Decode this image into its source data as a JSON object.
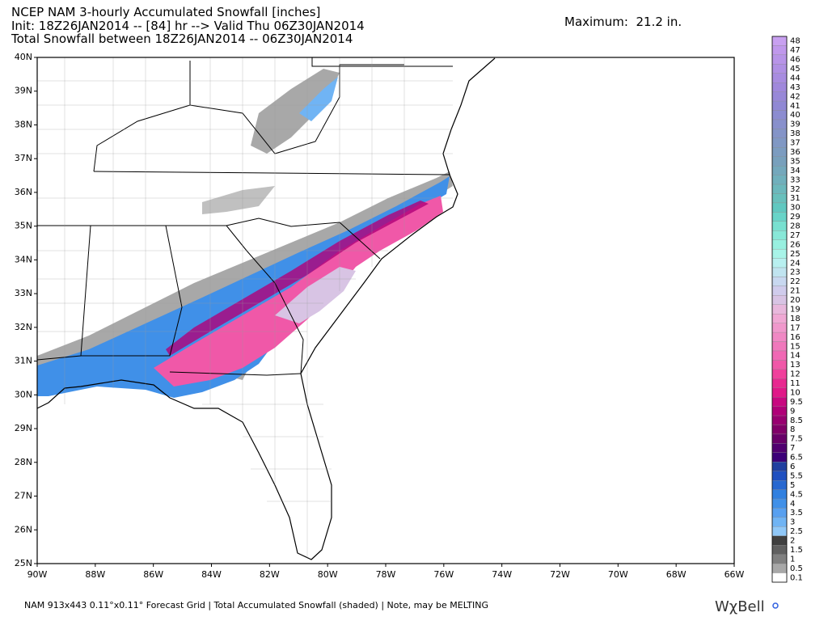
{
  "header": {
    "title": "NCEP NAM 3-hourly Accumulated Snowfall [inches]",
    "line2": "Init: 18Z26JAN2014 -- [84] hr --> Valid Thu 06Z30JAN2014",
    "line3": "Total Snowfall between 18Z26JAN2014 -- 06Z30JAN2014",
    "maximum": "Maximum:  21.2 in."
  },
  "map": {
    "lat_labels": [
      "40N",
      "39N",
      "38N",
      "37N",
      "36N",
      "35N",
      "34N",
      "33N",
      "32N",
      "31N",
      "30N",
      "29N",
      "28N",
      "27N",
      "26N",
      "25N"
    ],
    "lon_labels": [
      "90W",
      "88W",
      "86W",
      "84W",
      "82W",
      "80W",
      "78W",
      "76W",
      "74W",
      "72W",
      "70W",
      "68W",
      "66W"
    ]
  },
  "colorbar": {
    "labels": [
      "48",
      "47",
      "46",
      "45",
      "44",
      "43",
      "42",
      "41",
      "40",
      "39",
      "38",
      "37",
      "36",
      "35",
      "34",
      "33",
      "32",
      "31",
      "30",
      "29",
      "28",
      "27",
      "26",
      "25",
      "24",
      "23",
      "22",
      "21",
      "20",
      "19",
      "18",
      "17",
      "16",
      "15",
      "14",
      "13",
      "12",
      "11",
      "10",
      "9.5",
      "9",
      "8.5",
      "8",
      "7.5",
      "7",
      "6.5",
      "6",
      "5.5",
      "5",
      "4.5",
      "4",
      "3.5",
      "3",
      "2.5",
      "2",
      "1.5",
      "1",
      "0.5",
      "0.1"
    ],
    "colors": [
      "#c8a0f0",
      "#c098ec",
      "#b894e8",
      "#b090e4",
      "#a88ce0",
      "#a088dc",
      "#9888d8",
      "#9088d4",
      "#8c8cd0",
      "#8890cc",
      "#8494c8",
      "#8098c4",
      "#7c9cc0",
      "#78a0bc",
      "#74a8bc",
      "#70b0bc",
      "#6cb8bc",
      "#68c0bc",
      "#60c8c0",
      "#68d4c8",
      "#78e0d0",
      "#88e8d8",
      "#98f0e0",
      "#a8f4e8",
      "#b8f0f0",
      "#c0e4f0",
      "#c8d8f0",
      "#d0ccec",
      "#d8c4e4",
      "#e8b8dc",
      "#f0a8d4",
      "#f098cc",
      "#f088c4",
      "#f078bc",
      "#f068b4",
      "#f058a8",
      "#f0409c",
      "#e82890",
      "#e01888",
      "#c80880",
      "#b00078",
      "#980070",
      "#800068",
      "#680068",
      "#500070",
      "#3c0078",
      "#2040a0",
      "#2050c0",
      "#2868d0",
      "#3080e0",
      "#4090e8",
      "#58a0f0",
      "#70b4f4",
      "#90c8f8",
      "#404040",
      "#606060",
      "#808080",
      "#a8a8a8",
      "#ffffff"
    ]
  },
  "footer": {
    "text": "NAM 913x443 0.11°x0.11° Forecast Grid | Total Accumulated Snowfall (shaded) | Note, may be MELTING",
    "logo": "WχBell"
  }
}
